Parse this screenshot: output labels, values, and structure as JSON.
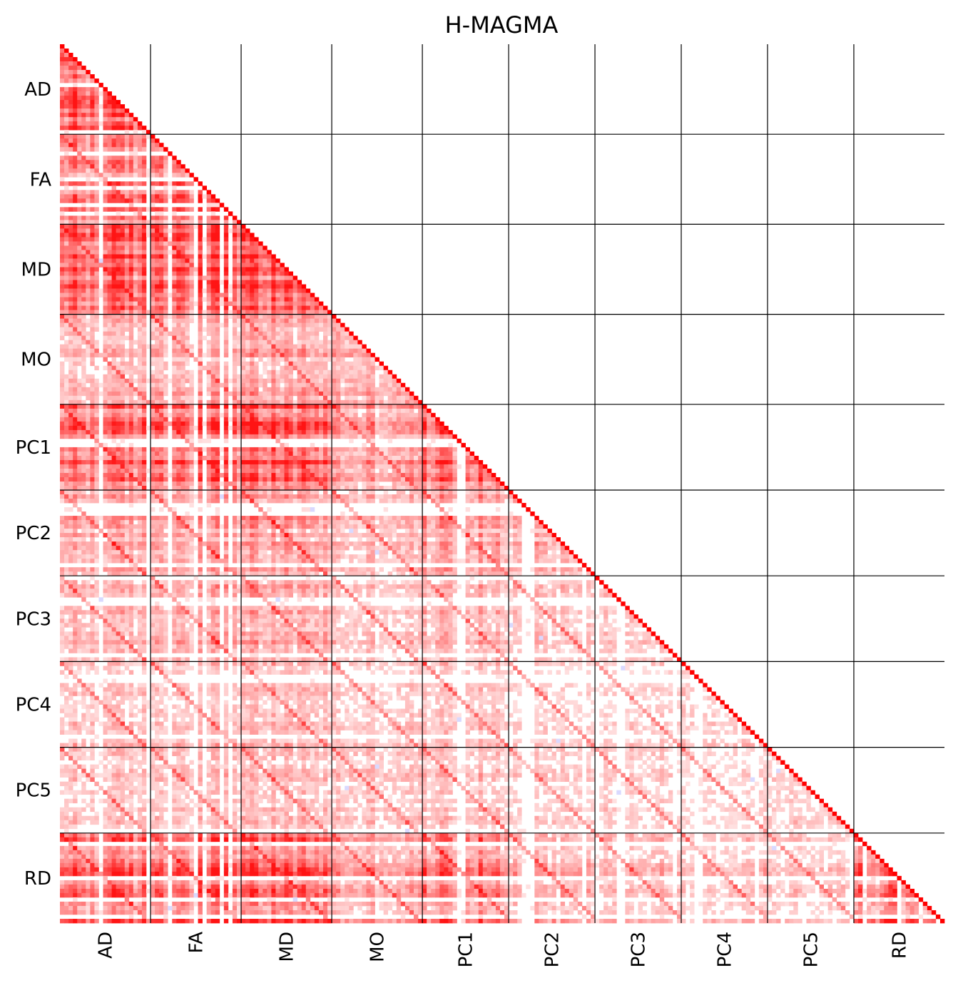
{
  "chart_data": {
    "type": "heatmap",
    "title": "H-MAGMA",
    "xlabel": "",
    "ylabel": "",
    "shape": "lower-triangular correlation matrix",
    "groups": [
      {
        "label": "AD",
        "n": 21
      },
      {
        "label": "FA",
        "n": 21
      },
      {
        "label": "MD",
        "n": 21
      },
      {
        "label": "MO",
        "n": 21
      },
      {
        "label": "PC1",
        "n": 20
      },
      {
        "label": "PC2",
        "n": 20
      },
      {
        "label": "PC3",
        "n": 20
      },
      {
        "label": "PC4",
        "n": 20
      },
      {
        "label": "PC5",
        "n": 20
      },
      {
        "label": "RD",
        "n": 21
      }
    ],
    "x_tick_labels": [
      "AD",
      "FA",
      "MD",
      "MO",
      "PC1",
      "PC2",
      "PC3",
      "PC4",
      "PC5",
      "RD"
    ],
    "y_tick_labels": [
      "AD",
      "FA",
      "MD",
      "MO",
      "PC1",
      "PC2",
      "PC3",
      "PC4",
      "PC5",
      "RD"
    ],
    "value_range": [
      -1,
      1
    ],
    "diagonal_value": 1,
    "colors": {
      "positive": "#ff0000",
      "negative": "#0000ff",
      "zero": "#ffffff",
      "grid": "#000000"
    },
    "approx_block_mean_correlation": [
      [
        0.55,
        null,
        null,
        null,
        null,
        null,
        null,
        null,
        null,
        null
      ],
      [
        0.45,
        0.55,
        null,
        null,
        null,
        null,
        null,
        null,
        null,
        null
      ],
      [
        0.55,
        0.6,
        0.6,
        null,
        null,
        null,
        null,
        null,
        null,
        null
      ],
      [
        0.25,
        0.3,
        0.3,
        0.3,
        null,
        null,
        null,
        null,
        null,
        null
      ],
      [
        0.5,
        0.6,
        0.6,
        0.35,
        0.55,
        null,
        null,
        null,
        null,
        null
      ],
      [
        0.3,
        0.35,
        0.35,
        0.25,
        0.35,
        0.3,
        null,
        null,
        null,
        null
      ],
      [
        0.25,
        0.3,
        0.3,
        0.2,
        0.25,
        0.2,
        0.2,
        null,
        null,
        null
      ],
      [
        0.2,
        0.22,
        0.25,
        0.18,
        0.22,
        0.15,
        0.15,
        0.18,
        null,
        null
      ],
      [
        0.18,
        0.22,
        0.22,
        0.2,
        0.2,
        0.15,
        0.15,
        0.12,
        0.15,
        null
      ],
      [
        0.55,
        0.6,
        0.6,
        0.35,
        0.5,
        0.3,
        0.25,
        0.22,
        0.2,
        0.6
      ]
    ],
    "grid": false,
    "legend": "none"
  }
}
